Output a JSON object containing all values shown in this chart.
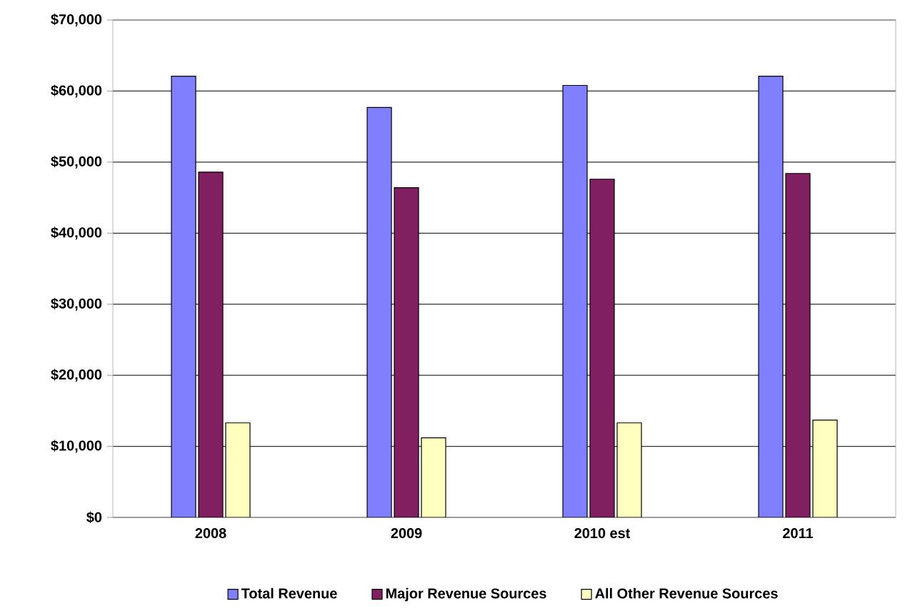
{
  "chart_data": {
    "type": "bar",
    "categories": [
      "2008",
      "2009",
      "2010 est",
      "2011"
    ],
    "series": [
      {
        "name": "Total Revenue",
        "color": "#8080ff",
        "values": [
          62100,
          57700,
          60800,
          62100
        ]
      },
      {
        "name": "Major Revenue Sources",
        "color": "#802060",
        "values": [
          48600,
          46400,
          47600,
          48400
        ]
      },
      {
        "name": "All Other Revenue Sources",
        "color": "#ffffc0",
        "values": [
          13300,
          11200,
          13300,
          13700
        ]
      }
    ],
    "ylim": [
      0,
      70000
    ],
    "yticks": [
      {
        "value": 0,
        "label": "$0"
      },
      {
        "value": 10000,
        "label": "$10,000"
      },
      {
        "value": 20000,
        "label": "$20,000"
      },
      {
        "value": 30000,
        "label": "$30,000"
      },
      {
        "value": 40000,
        "label": "$40,000"
      },
      {
        "value": 50000,
        "label": "$50,000"
      },
      {
        "value": 60000,
        "label": "$60,000"
      },
      {
        "value": 70000,
        "label": "$70,000"
      }
    ],
    "grid": "y",
    "legend": "bottom"
  }
}
